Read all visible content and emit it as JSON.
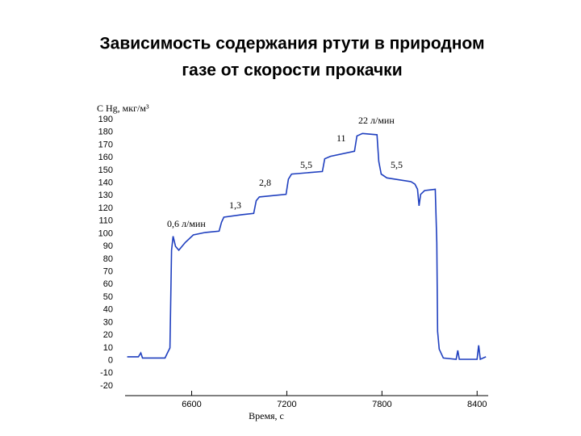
{
  "chart_data": {
    "type": "line",
    "title": "Зависимость содержания ртути в природном газе от скорости прокачки",
    "title_lines": [
      "Зависимость  содержания ртути в природном",
      "газе от скорости прокачки"
    ],
    "x_label": "Время, с",
    "y_label": "С Hg, мкг/м³",
    "annotations": [
      "0,6 л/мин",
      "1,3",
      "2,8",
      "5,5",
      "11",
      "22 л/мин",
      "5,5"
    ],
    "xlim": [
      6180,
      8470
    ],
    "xticks": [
      6600,
      7200,
      7800,
      8400
    ],
    "ylim": [
      -20,
      190
    ],
    "yticks": [
      190,
      180,
      170,
      160,
      150,
      140,
      130,
      120,
      110,
      100,
      90,
      80,
      70,
      60,
      50,
      40,
      30,
      20,
      10,
      0,
      -10,
      -20
    ],
    "series": [
      {
        "name": "C Hg",
        "color": "#1f3fbf",
        "x": [
          6193,
          6264,
          6279,
          6290,
          6432,
          6447,
          6463,
          6473,
          6483,
          6498,
          6519,
          6559,
          6610,
          6686,
          6773,
          6788,
          6803,
          6915,
          6991,
          7007,
          7027,
          7195,
          7210,
          7230,
          7424,
          7439,
          7475,
          7627,
          7642,
          7677,
          7769,
          7780,
          7795,
          7831,
          7983,
          8008,
          8024,
          8034,
          8044,
          8069,
          8136,
          8146,
          8151,
          8161,
          8187,
          8268,
          8278,
          8288,
          8400,
          8410,
          8420,
          8456
        ],
        "values": [
          3,
          3,
          6,
          2,
          2,
          6,
          10,
          87,
          98,
          90,
          87,
          93,
          99,
          101,
          102,
          109,
          113,
          115,
          116,
          126,
          129,
          131,
          143,
          147,
          149,
          159,
          161,
          165,
          177,
          179,
          178,
          157,
          147,
          144,
          141,
          139,
          135,
          122,
          131,
          134,
          135,
          93,
          23,
          9,
          2,
          1,
          8,
          1,
          1,
          12,
          1,
          3
        ]
      }
    ]
  }
}
